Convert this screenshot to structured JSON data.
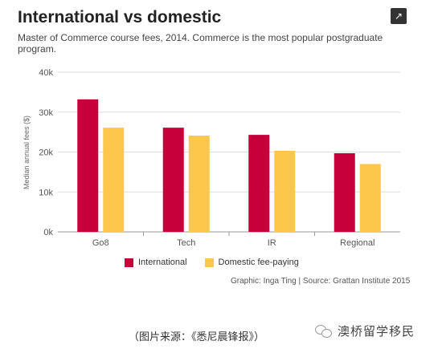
{
  "header": {
    "title": "International vs domestic",
    "subtitle": "Master of Commerce course fees, 2014. Commerce is the most popular postgraduate program.",
    "share_icon": "share-icon"
  },
  "chart_data": {
    "type": "bar",
    "categories": [
      "Go8",
      "Tech",
      "IR",
      "Regional"
    ],
    "series": [
      {
        "name": "International",
        "color": "#c8003a",
        "values": [
          33200,
          26100,
          24300,
          19700
        ]
      },
      {
        "name": "Domestic fee-paying",
        "color": "#fcc74a",
        "values": [
          26100,
          24100,
          20300,
          17000
        ]
      }
    ],
    "ylabel": "Median annual fees ($)",
    "ylim": [
      0,
      40000
    ],
    "yticks": [
      0,
      10000,
      20000,
      30000,
      40000
    ],
    "ytick_labels": [
      "0k",
      "10k",
      "20k",
      "30k",
      "40k"
    ],
    "grid": true,
    "legend": "bottom"
  },
  "footer": {
    "credit": "Graphic: Inga Ting | Source: Grattan Institute 2015"
  },
  "caption": {
    "text": "（图片来源：《悉尼晨锋报》）",
    "account": "澳桥留学移民",
    "account_icon": "wechat-icon"
  }
}
